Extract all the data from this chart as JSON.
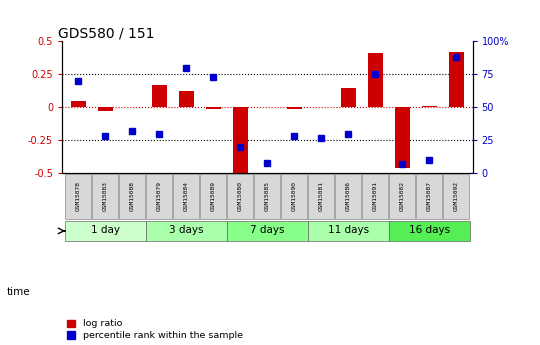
{
  "title": "GDS580 / 151",
  "samples": [
    "GSM15078",
    "GSM15083",
    "GSM15088",
    "GSM15079",
    "GSM15084",
    "GSM15089",
    "GSM15080",
    "GSM15085",
    "GSM15090",
    "GSM15081",
    "GSM15086",
    "GSM15091",
    "GSM15082",
    "GSM15087",
    "GSM15092"
  ],
  "log_ratio": [
    0.05,
    -0.03,
    0.005,
    0.17,
    0.12,
    -0.01,
    -0.5,
    0.0,
    -0.01,
    0.0,
    0.15,
    0.41,
    -0.46,
    0.01,
    0.42
  ],
  "percentile_rank": [
    70,
    28,
    32,
    30,
    80,
    73,
    20,
    8,
    28,
    27,
    30,
    75,
    7,
    10,
    88
  ],
  "groups": [
    {
      "label": "1 day",
      "indices": [
        0,
        1,
        2
      ],
      "color": "#ccffcc"
    },
    {
      "label": "3 days",
      "indices": [
        3,
        4,
        5
      ],
      "color": "#aaffaa"
    },
    {
      "label": "7 days",
      "indices": [
        6,
        7,
        8
      ],
      "color": "#88ff88"
    },
    {
      "label": "11 days",
      "indices": [
        9,
        10,
        11
      ],
      "color": "#aaffaa"
    },
    {
      "label": "16 days",
      "indices": [
        12,
        13,
        14
      ],
      "color": "#55ee55"
    }
  ],
  "bar_color": "#cc0000",
  "point_color": "#0000cc",
  "ylim_left": [
    -0.5,
    0.5
  ],
  "ylim_right": [
    0,
    100
  ],
  "dotted_hlines": [
    0.25,
    -0.25
  ],
  "red_hline": 0.0,
  "bar_width": 0.55,
  "point_size": 5,
  "title_fontsize": 10,
  "tick_fontsize": 7,
  "group_label_fontsize": 7.5
}
